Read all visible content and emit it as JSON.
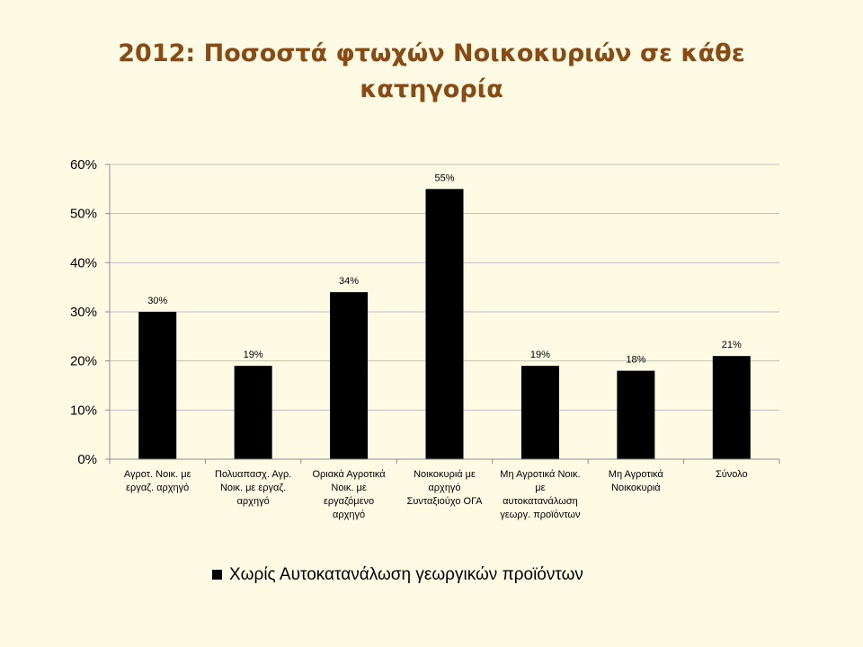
{
  "chart_data": {
    "type": "bar",
    "title": "2012: Ποσοστά φτωχών Νοικοκυριών σε κάθε κατηγορία",
    "categories": [
      [
        "Αγροτ. Νοικ. με",
        "εργαζ. αρχηγό"
      ],
      [
        "Πολυαπασχ. Αγρ.",
        "Νοικ. με εργαζ.",
        "αρχηγό"
      ],
      [
        "Οριακά Αγροτικά",
        "Νοικ. με",
        "εργαζόμενο",
        "αρχηγό"
      ],
      [
        "Νοικοκυριά με",
        "αρχηγό",
        "Συνταξιούχο ΟΓΑ"
      ],
      [
        "Μη Αγροτικά Νοικ.",
        "με",
        "αυτοκατανάλωση",
        "γεωργ. προϊόντων"
      ],
      [
        "Μη Αγροτικά",
        "Νοικοκυριά"
      ],
      [
        "Σύνολο"
      ]
    ],
    "series": [
      {
        "name": "Χωρίς Αυτοκατανάλωση γεωργικών προϊόντων",
        "values": [
          30,
          19,
          34,
          55,
          19,
          18,
          21
        ],
        "data_labels": [
          "30%",
          "19%",
          "34%",
          "55%",
          "19%",
          "18%",
          "21%"
        ],
        "color": "#000000"
      }
    ],
    "ylim": [
      0,
      60
    ],
    "yticks": [
      "0%",
      "10%",
      "20%",
      "30%",
      "40%",
      "50%",
      "60%"
    ],
    "grid": true,
    "legend_position": "bottom"
  },
  "colors": {
    "background": "#fdfbe3",
    "title": "#8a4a14",
    "grid": "#bfbfbf",
    "axis": "#8c8c8c"
  }
}
